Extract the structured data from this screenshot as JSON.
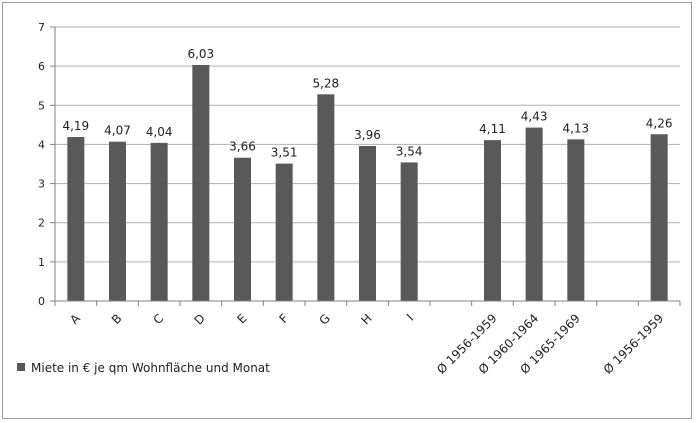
{
  "chart_data": {
    "type": "bar",
    "categories": [
      "A",
      "B",
      "C",
      "D",
      "E",
      "F",
      "G",
      "H",
      "I",
      "",
      "Ø 1956-1959",
      "Ø 1960-1964",
      "Ø 1965-1969",
      "",
      "Ø 1956-1959"
    ],
    "series": [
      {
        "name": "Miete in € je qm Wohnfläche und Monat",
        "values": [
          4.19,
          4.07,
          4.04,
          6.03,
          3.66,
          3.51,
          5.28,
          3.96,
          3.54,
          null,
          4.11,
          4.43,
          4.13,
          null,
          4.26
        ],
        "labels": [
          "4,19",
          "4,07",
          "4,04",
          "6,03",
          "3,66",
          "3,51",
          "5,28",
          "3,96",
          "3,54",
          "",
          "4,11",
          "4,43",
          "4,13",
          "",
          "4,26"
        ]
      }
    ],
    "ylim": [
      0,
      7
    ],
    "yticks": [
      0,
      1,
      2,
      3,
      4,
      5,
      6,
      7
    ],
    "grid": true,
    "legend_position": "bottom-left",
    "title": "",
    "xlabel": "",
    "ylabel": "",
    "colors": {
      "bar": "#595959",
      "grid": "#b0b0b0",
      "axis": "#808080"
    }
  }
}
